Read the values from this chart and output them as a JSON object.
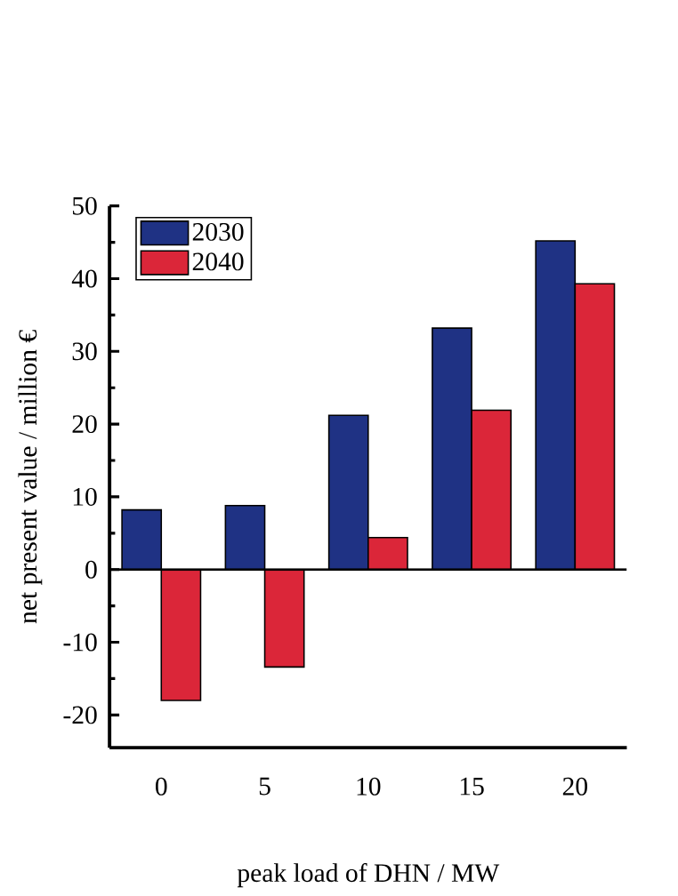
{
  "chart_data": {
    "type": "bar",
    "xlabel": "peak load of DHN / MW",
    "ylabel": "net present value / million €",
    "categories": [
      "0",
      "5",
      "10",
      "15",
      "20"
    ],
    "series": [
      {
        "name": "2030",
        "color": "#1f3284",
        "values": [
          8.2,
          8.8,
          21.2,
          33.2,
          45.2
        ]
      },
      {
        "name": "2040",
        "color": "#db2639",
        "values": [
          -18,
          -13.4,
          4.4,
          21.9,
          39.3
        ]
      }
    ],
    "ylim": [
      -24.5,
      50
    ],
    "yticks": [
      -20,
      -10,
      0,
      10,
      20,
      30,
      40,
      50
    ],
    "ref_lines": [
      {
        "axis": "y",
        "value": 0
      }
    ],
    "grid": false,
    "legend": "top left"
  }
}
